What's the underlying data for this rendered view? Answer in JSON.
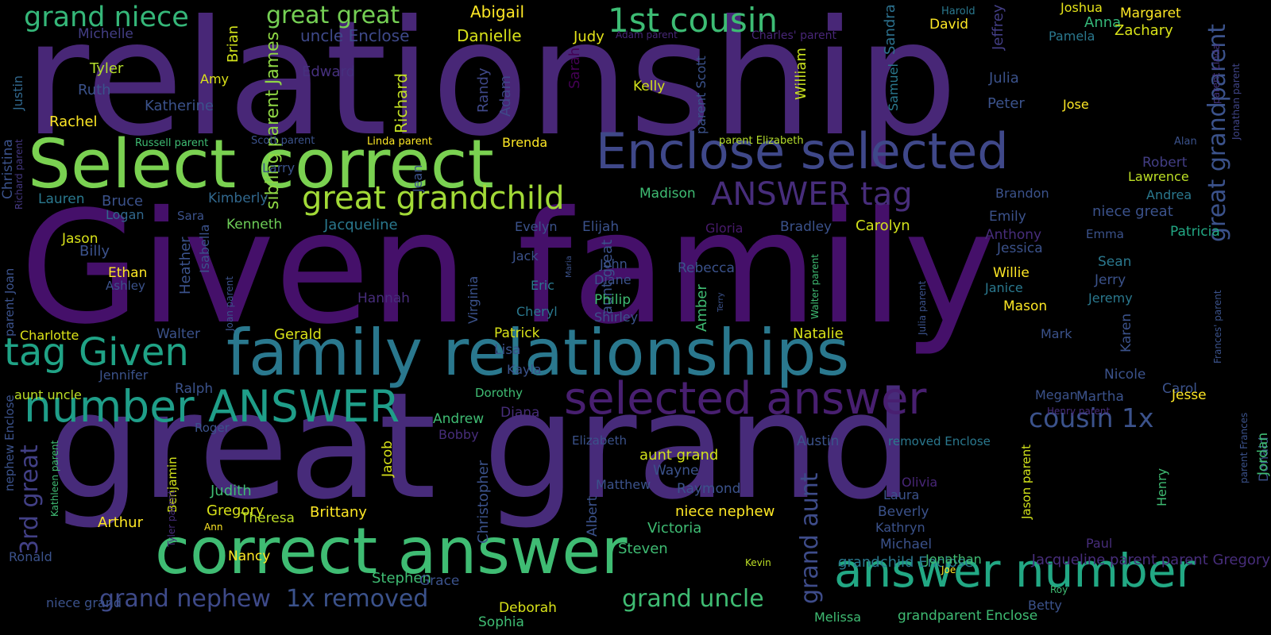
{
  "words": [
    {
      "text": "relationship",
      "color": "#482777"
    },
    {
      "text": "Given family",
      "color": "#45106a"
    },
    {
      "text": "great grand",
      "color": "#472b7a"
    },
    {
      "text": "Select correct",
      "color": "#7ad151"
    },
    {
      "text": "family relationships",
      "color": "#2a788e"
    },
    {
      "text": "correct answer",
      "color": "#3fbc73"
    },
    {
      "text": "Enclose selected",
      "color": "#3f4889"
    },
    {
      "text": "answer number",
      "color": "#22a884"
    },
    {
      "text": "selected answer",
      "color": "#481f70"
    },
    {
      "text": "number ANSWER",
      "color": "#1f9e89"
    },
    {
      "text": "tag Given",
      "color": "#20a386"
    },
    {
      "text": "great grandchild",
      "color": "#a2da37"
    },
    {
      "text": "ANSWER tag",
      "color": "#472d7b"
    },
    {
      "text": "1st cousin",
      "color": "#3dbc74"
    },
    {
      "text": "grand niece",
      "color": "#35b779"
    },
    {
      "text": "great great",
      "color": "#75d054"
    },
    {
      "text": "great grandparent",
      "color": "#3b528b"
    },
    {
      "text": "cousin 1x",
      "color": "#3b528b"
    },
    {
      "text": "grand nephew",
      "color": "#3e4a89"
    },
    {
      "text": "1x removed",
      "color": "#3b528b"
    },
    {
      "text": "grand uncle",
      "color": "#3fbc73"
    },
    {
      "text": "3rd great",
      "color": "#424086"
    },
    {
      "text": "grand aunt",
      "color": "#3e4c8a"
    },
    {
      "text": "uncle Enclose",
      "color": "#3e4989"
    },
    {
      "text": "sibling parent James",
      "color": "#8fd744"
    },
    {
      "text": "Abigail",
      "color": "#fde725"
    },
    {
      "text": "Danielle",
      "color": "#d8e219"
    },
    {
      "text": "Judy",
      "color": "#e5e419"
    },
    {
      "text": "Michelle",
      "color": "#433e85"
    },
    {
      "text": "Tyler",
      "color": "#b5de2b"
    },
    {
      "text": "Amy",
      "color": "#dde318"
    },
    {
      "text": "Brian",
      "color": "#d2e21b"
    },
    {
      "text": "Ruth",
      "color": "#3b528b"
    },
    {
      "text": "Edward",
      "color": "#46307e"
    },
    {
      "text": "Katherine",
      "color": "#3b528b"
    },
    {
      "text": "Rachel",
      "color": "#fde725"
    },
    {
      "text": "Justin",
      "color": "#31688e"
    },
    {
      "text": "Richard",
      "color": "#c2df23"
    },
    {
      "text": "Randy",
      "color": "#3f4889"
    },
    {
      "text": "Adam",
      "color": "#3f4788"
    },
    {
      "text": "Sarah",
      "color": "#440154"
    },
    {
      "text": "William",
      "color": "#cae11f"
    },
    {
      "text": "Kelly",
      "color": "#d2e21b"
    },
    {
      "text": "Adam parent",
      "color": "#482878"
    },
    {
      "text": "Charles' parent",
      "color": "#482677"
    },
    {
      "text": "parent Scott",
      "color": "#3b528b"
    },
    {
      "text": "Samuel",
      "color": "#2a788e"
    },
    {
      "text": "Sandra",
      "color": "#2c718e"
    },
    {
      "text": "David",
      "color": "#fde725"
    },
    {
      "text": "Jeffrey",
      "color": "#433e85"
    },
    {
      "text": "Harold",
      "color": "#2a788e"
    },
    {
      "text": "Joshua",
      "color": "#e5e419"
    },
    {
      "text": "Anna",
      "color": "#35b779"
    },
    {
      "text": "Margaret",
      "color": "#fde725"
    },
    {
      "text": "Pamela",
      "color": "#2a788e"
    },
    {
      "text": "Zachary",
      "color": "#d8e219"
    },
    {
      "text": "Julia",
      "color": "#3b528b"
    },
    {
      "text": "Peter",
      "color": "#3b528b"
    },
    {
      "text": "Jose",
      "color": "#fde725"
    },
    {
      "text": "parent Linda",
      "color": "#46337f"
    },
    {
      "text": "Jonathan parent",
      "color": "#404588"
    },
    {
      "text": "Christina",
      "color": "#3b528b"
    },
    {
      "text": "Richard parent",
      "color": "#453882"
    },
    {
      "text": "Russell parent",
      "color": "#3fbc73"
    },
    {
      "text": "Scott parent",
      "color": "#3b528b"
    },
    {
      "text": "Linda parent",
      "color": "#fde725"
    },
    {
      "text": "Brenda",
      "color": "#fde725"
    },
    {
      "text": "parent Elizabeth",
      "color": "#b5de2b"
    },
    {
      "text": "Alan",
      "color": "#3b528b"
    },
    {
      "text": "Larry",
      "color": "#3b528b"
    },
    {
      "text": "Lauren",
      "color": "#2a788e"
    },
    {
      "text": "Bruce",
      "color": "#3b528b"
    },
    {
      "text": "Kimberly",
      "color": "#31688e"
    },
    {
      "text": "Logan",
      "color": "#31688e"
    },
    {
      "text": "Sara",
      "color": "#3b528b"
    },
    {
      "text": "Kenneth",
      "color": "#6ece58"
    },
    {
      "text": "Jacqueline",
      "color": "#2a788e"
    },
    {
      "text": "Jean",
      "color": "#3b528b"
    },
    {
      "text": "Madison",
      "color": "#3fbc73"
    },
    {
      "text": "Robert",
      "color": "#433e85"
    },
    {
      "text": "Lawrence",
      "color": "#bddf26"
    },
    {
      "text": "Brandon",
      "color": "#3b528b"
    },
    {
      "text": "Andrea",
      "color": "#2a788e"
    },
    {
      "text": "Jason",
      "color": "#d8e219"
    },
    {
      "text": "Billy",
      "color": "#3b528b"
    },
    {
      "text": "parent Joan",
      "color": "#3b528b"
    },
    {
      "text": "Heather",
      "color": "#3b528b"
    },
    {
      "text": "Isabella",
      "color": "#3b528b"
    },
    {
      "text": "Ethan",
      "color": "#fde725"
    },
    {
      "text": "Ashley",
      "color": "#3b528b"
    },
    {
      "text": "Evelyn",
      "color": "#3b528b"
    },
    {
      "text": "Elijah",
      "color": "#3b528b"
    },
    {
      "text": "Gloria",
      "color": "#481a6c"
    },
    {
      "text": "Bradley",
      "color": "#3b528b"
    },
    {
      "text": "Carolyn",
      "color": "#d2e21b"
    },
    {
      "text": "Emily",
      "color": "#3b528b"
    },
    {
      "text": "Anthony",
      "color": "#472d7b"
    },
    {
      "text": "niece great",
      "color": "#3b528b"
    },
    {
      "text": "Emma",
      "color": "#3b528b"
    },
    {
      "text": "Patricia",
      "color": "#22a884"
    },
    {
      "text": "Jack",
      "color": "#3b528b"
    },
    {
      "text": "Maria",
      "color": "#3b528b"
    },
    {
      "text": "John",
      "color": "#3b528b"
    },
    {
      "text": "Diane",
      "color": "#3b528b"
    },
    {
      "text": "aunt great",
      "color": "#3b528b"
    },
    {
      "text": "Rebecca",
      "color": "#3b528b"
    },
    {
      "text": "Hannah",
      "color": "#472d7b"
    },
    {
      "text": "Virginia",
      "color": "#3b528b"
    },
    {
      "text": "Eric",
      "color": "#2a788e"
    },
    {
      "text": "Cheryl",
      "color": "#2a788e"
    },
    {
      "text": "Philip",
      "color": "#3fbc73"
    },
    {
      "text": "Shirley",
      "color": "#3b528b"
    },
    {
      "text": "Amber",
      "color": "#3fbc73"
    },
    {
      "text": "Terry",
      "color": "#3b528b"
    },
    {
      "text": "Walter parent",
      "color": "#3fbc73"
    },
    {
      "text": "Julia parent",
      "color": "#3b528b"
    },
    {
      "text": "Jessica",
      "color": "#3b528b"
    },
    {
      "text": "Willie",
      "color": "#fde725"
    },
    {
      "text": "Janice",
      "color": "#2a788e"
    },
    {
      "text": "Mason",
      "color": "#fde725"
    },
    {
      "text": "Sean",
      "color": "#2a788e"
    },
    {
      "text": "Jerry",
      "color": "#3b528b"
    },
    {
      "text": "Jeremy",
      "color": "#2a788e"
    },
    {
      "text": "Joan parent",
      "color": "#3b528b"
    },
    {
      "text": "Frances' parent",
      "color": "#3b528b"
    },
    {
      "text": "Charlotte",
      "color": "#dde318"
    },
    {
      "text": "Walter",
      "color": "#3b528b"
    },
    {
      "text": "Gerald",
      "color": "#d8e219"
    },
    {
      "text": "Patrick",
      "color": "#d8e219"
    },
    {
      "text": "Lisa",
      "color": "#3b528b"
    },
    {
      "text": "Natalie",
      "color": "#d8e219"
    },
    {
      "text": "Mark",
      "color": "#3b528b"
    },
    {
      "text": "Karen",
      "color": "#3b528b"
    },
    {
      "text": "Jennifer",
      "color": "#3b528b"
    },
    {
      "text": "Ralph",
      "color": "#3b528b"
    },
    {
      "text": "Kayla",
      "color": "#3b528b"
    },
    {
      "text": "Nicole",
      "color": "#3b528b"
    },
    {
      "text": "Carol",
      "color": "#3b528b"
    },
    {
      "text": "aunt uncle",
      "color": "#bddf26"
    },
    {
      "text": "Dorothy",
      "color": "#3fbc73"
    },
    {
      "text": "Megan",
      "color": "#3b528b"
    },
    {
      "text": "Martha",
      "color": "#3b528b"
    },
    {
      "text": "Jesse",
      "color": "#fde725"
    },
    {
      "text": "Henry parent",
      "color": "#472d7b"
    },
    {
      "text": "Roger",
      "color": "#3b528b"
    },
    {
      "text": "Andrew",
      "color": "#3fbc73"
    },
    {
      "text": "Diana",
      "color": "#472d7b"
    },
    {
      "text": "Bobby",
      "color": "#472d7b"
    },
    {
      "text": "Elizabeth",
      "color": "#3b528b"
    },
    {
      "text": "Austin",
      "color": "#3b528b"
    },
    {
      "text": "removed Enclose",
      "color": "#2a788e"
    },
    {
      "text": "parent Frances",
      "color": "#3b528b"
    },
    {
      "text": "nephew Enclose",
      "color": "#3b528b"
    },
    {
      "text": "Kathleen parent",
      "color": "#3fbc73"
    },
    {
      "text": "Benjamin",
      "color": "#d2e21b"
    },
    {
      "text": "Jacob",
      "color": "#d8e219"
    },
    {
      "text": "Christopher",
      "color": "#3b528b"
    },
    {
      "text": "aunt grand",
      "color": "#d2e21b"
    },
    {
      "text": "Wayne",
      "color": "#3b528b"
    },
    {
      "text": "Matthew",
      "color": "#3b528b"
    },
    {
      "text": "Raymond",
      "color": "#3b528b"
    },
    {
      "text": "Albert",
      "color": "#3b528b"
    },
    {
      "text": "niece nephew",
      "color": "#fde725"
    },
    {
      "text": "Victoria",
      "color": "#3fbc73"
    },
    {
      "text": "Steven",
      "color": "#3fbc73"
    },
    {
      "text": "Olivia",
      "color": "#482677"
    },
    {
      "text": "Laura",
      "color": "#3b528b"
    },
    {
      "text": "Beverly",
      "color": "#3b528b"
    },
    {
      "text": "Kathryn",
      "color": "#3b528b"
    },
    {
      "text": "Michael",
      "color": "#3b528b"
    },
    {
      "text": "Henry",
      "color": "#3fbc73"
    },
    {
      "text": "Jason parent",
      "color": "#d2e21b"
    },
    {
      "text": "Donald",
      "color": "#3b528b"
    },
    {
      "text": "Jordan",
      "color": "#3fbc73"
    },
    {
      "text": "Paul",
      "color": "#472d7b"
    },
    {
      "text": "Judith",
      "color": "#3fbc73"
    },
    {
      "text": "Gregory",
      "color": "#d8e219"
    },
    {
      "text": "Brittany",
      "color": "#fde725"
    },
    {
      "text": "Arthur",
      "color": "#fde725"
    },
    {
      "text": "Tyler parent",
      "color": "#472d7b"
    },
    {
      "text": "Ann",
      "color": "#fde725"
    },
    {
      "text": "Theresa",
      "color": "#bddf26"
    },
    {
      "text": "Nancy",
      "color": "#fde725"
    },
    {
      "text": "Ronald",
      "color": "#3b528b"
    },
    {
      "text": "Kevin",
      "color": "#bddf26"
    },
    {
      "text": "grandchild Enclose",
      "color": "#2a788e"
    },
    {
      "text": "Jonathan",
      "color": "#3fbc73"
    },
    {
      "text": "Jacqueline parent parent Gregory",
      "color": "#472d7b"
    },
    {
      "text": "Joe",
      "color": "#fde725"
    },
    {
      "text": "Stephen",
      "color": "#3fbc73"
    },
    {
      "text": "Grace",
      "color": "#3b528b"
    },
    {
      "text": "Roy",
      "color": "#3fbc73"
    },
    {
      "text": "Betty",
      "color": "#3b528b"
    },
    {
      "text": "niece grand",
      "color": "#3b528b"
    },
    {
      "text": "Deborah",
      "color": "#d8e219"
    },
    {
      "text": "Sophia",
      "color": "#3fbc73"
    },
    {
      "text": "Melissa",
      "color": "#3fbc73"
    },
    {
      "text": "grandparent Enclose",
      "color": "#3fbc73"
    }
  ]
}
